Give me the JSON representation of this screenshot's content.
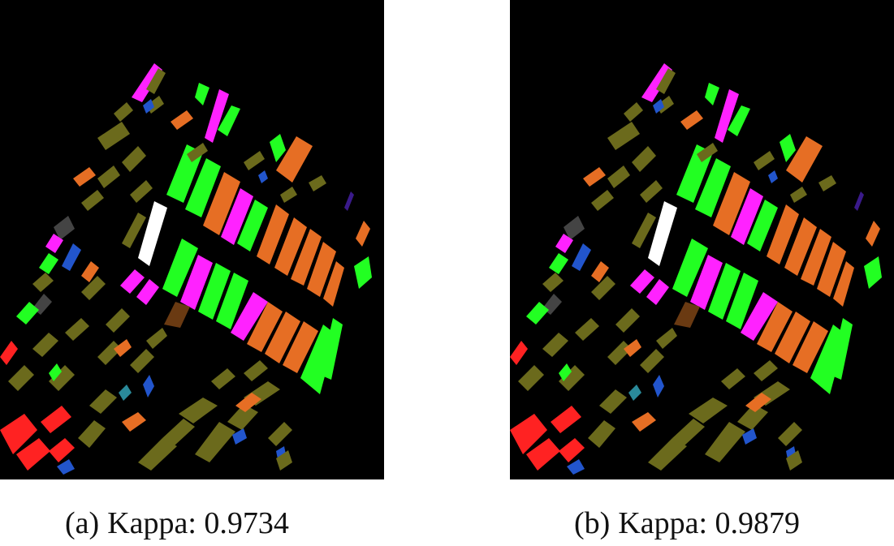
{
  "panels": [
    {
      "label": "(a)",
      "caption": "Kappa: 0.9734"
    },
    {
      "label": "(b)",
      "caption": "Kappa: 0.9879"
    }
  ],
  "colors": {
    "background": "#000000",
    "olive": "#6b6a1c",
    "orange": "#e66e24",
    "green": "#22ff22",
    "magenta": "#ff22ff",
    "white": "#ffffff",
    "red": "#ff2222",
    "blue": "#2255cc",
    "gray": "#444444",
    "brown": "#6a3a12",
    "teal": "#2a8a9a",
    "purple": "#3a1a8a"
  }
}
